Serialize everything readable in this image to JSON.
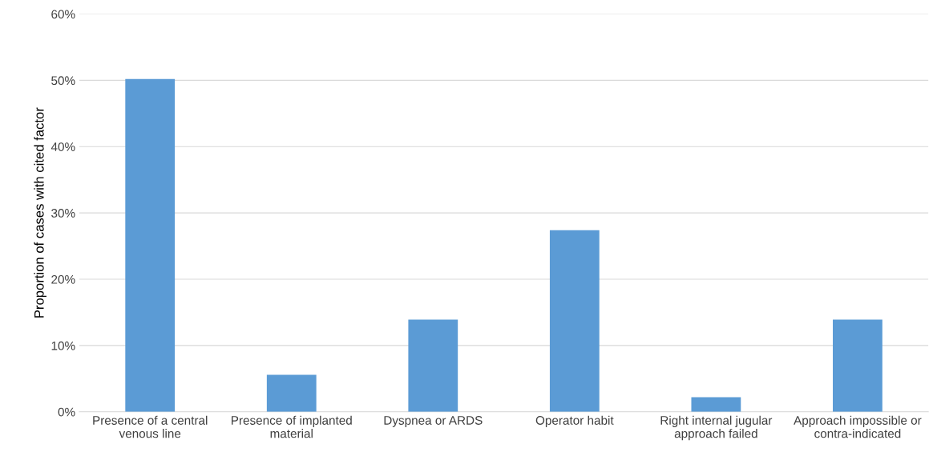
{
  "chart_data": {
    "type": "bar",
    "ylabel": "Proportion of cases with cited factor",
    "categories": [
      "Presence of a central venous line",
      "Presence of implanted material",
      "Dyspnea or ARDS",
      "Operator habit",
      "Right internal jugular approach failed",
      "Approach impossible or contra-indicated"
    ],
    "values": [
      50.2,
      5.6,
      13.9,
      27.4,
      2.2,
      13.9
    ],
    "color": "#5b9bd5",
    "ylim": [
      0,
      60
    ],
    "yticks": [
      {
        "value": 0,
        "label": "0%"
      },
      {
        "value": 10,
        "label": "10%"
      },
      {
        "value": 20,
        "label": "20%"
      },
      {
        "value": 30,
        "label": "30%"
      },
      {
        "value": 40,
        "label": "40%"
      },
      {
        "value": 50,
        "label": "50%"
      },
      {
        "value": 60,
        "label": "60%"
      }
    ],
    "grid": "y"
  }
}
